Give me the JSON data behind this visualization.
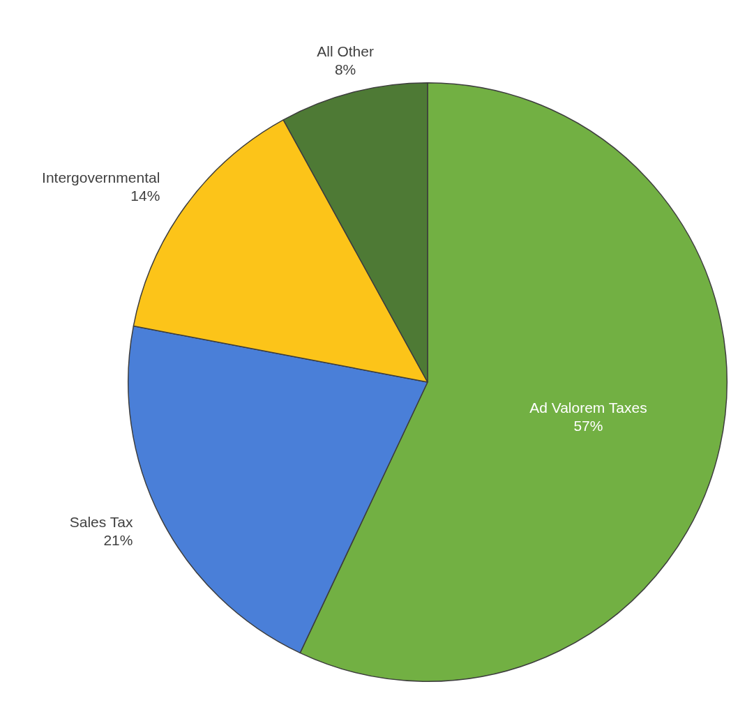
{
  "chart_data": {
    "type": "pie",
    "categories": [
      "Ad Valorem Taxes",
      "Sales Tax",
      "Intergovernmental",
      "All Other"
    ],
    "values": [
      57,
      21,
      14,
      8
    ],
    "colors": [
      "#72b043",
      "#4a7fd8",
      "#fcc419",
      "#4e7a35"
    ],
    "value_labels": [
      "57%",
      "21%",
      "14%",
      "8%"
    ],
    "legend": false
  }
}
